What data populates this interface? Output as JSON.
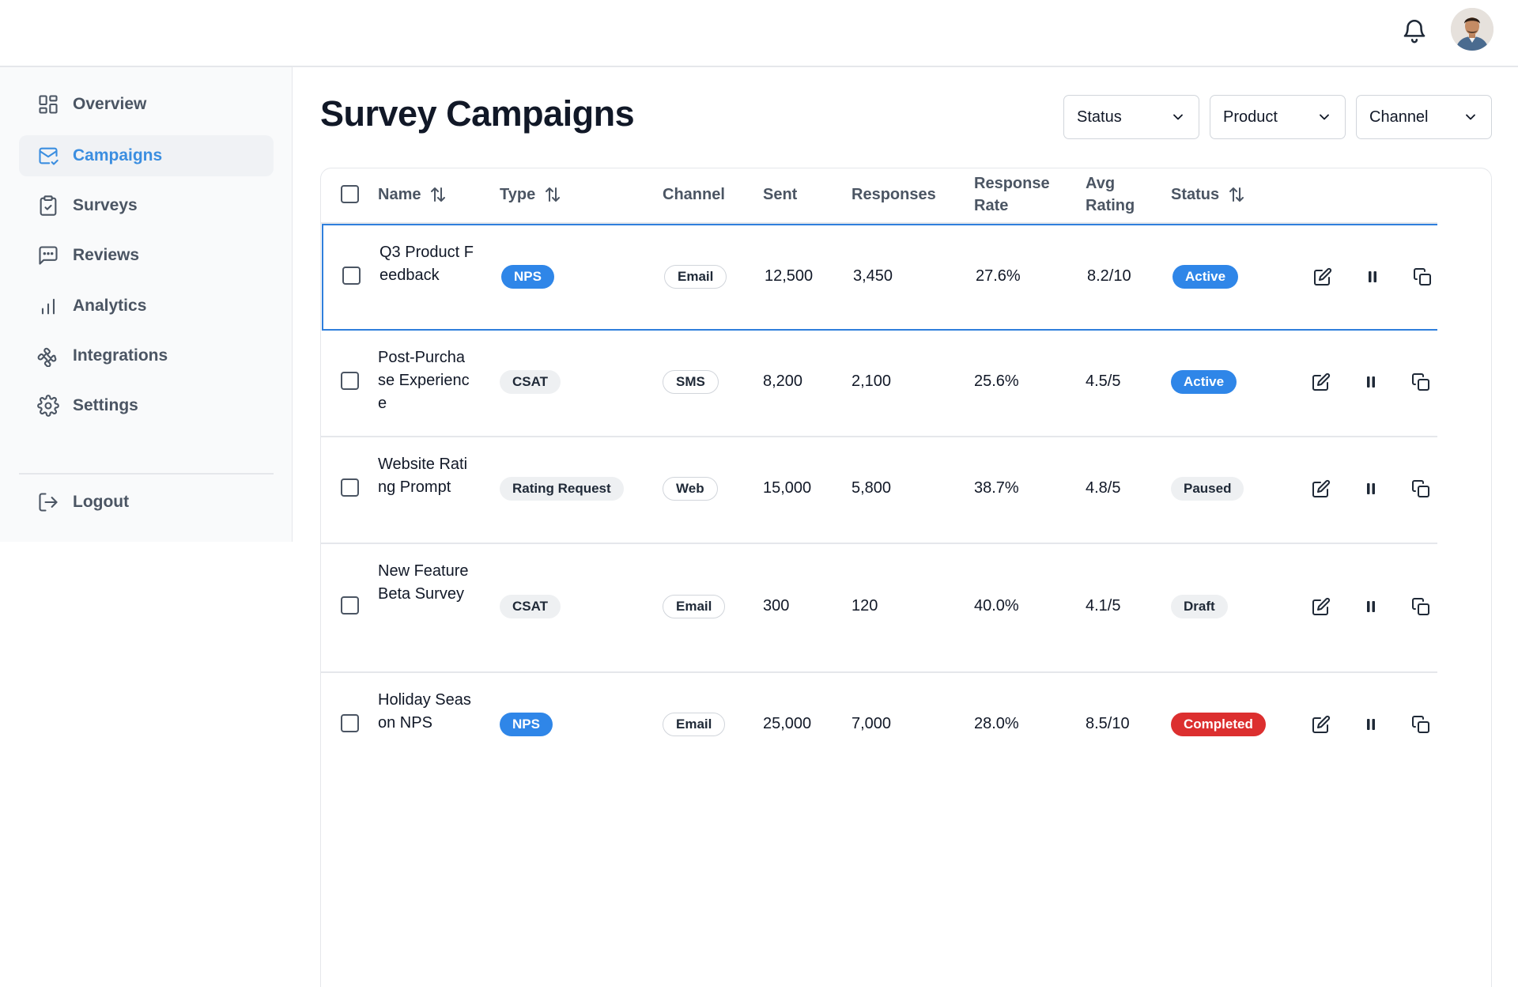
{
  "header": {
    "bell_icon": "bell-icon",
    "avatar_icon": "user-avatar"
  },
  "sidebar": {
    "items": [
      {
        "label": "Overview",
        "icon": "grid-icon",
        "active": false
      },
      {
        "label": "Campaigns",
        "icon": "mail-check-icon",
        "active": true
      },
      {
        "label": "Surveys",
        "icon": "clipboard-check-icon",
        "active": false
      },
      {
        "label": "Reviews",
        "icon": "message-dots-icon",
        "active": false
      },
      {
        "label": "Analytics",
        "icon": "bar-chart-icon",
        "active": false
      },
      {
        "label": "Integrations",
        "icon": "puzzle-icon",
        "active": false
      },
      {
        "label": "Settings",
        "icon": "gear-icon",
        "active": false
      }
    ],
    "logout_label": "Logout"
  },
  "main": {
    "title": "Survey Campaigns",
    "filters": [
      "Status",
      "Product",
      "Channel"
    ]
  },
  "table": {
    "columns": {
      "name": "Name",
      "type": "Type",
      "channel": "Channel",
      "sent": "Sent",
      "responses": "Responses",
      "response_rate_1": "Response",
      "response_rate_2": "Rate",
      "avg_rating_1": "Avg",
      "avg_rating_2": "Rating",
      "status": "Status"
    },
    "rows": [
      {
        "name": "Q3 Product Feedback",
        "type": "NPS",
        "channel": "Email",
        "sent": "12,500",
        "responses": "3,450",
        "rate": "27.6%",
        "rating": "8.2/10",
        "status": "Active"
      },
      {
        "name": "Post-Purchase Experience",
        "type": "CSAT",
        "channel": "SMS",
        "sent": "8,200",
        "responses": "2,100",
        "rate": "25.6%",
        "rating": "4.5/5",
        "status": "Active"
      },
      {
        "name": "Website Rating Prompt",
        "type": "Rating Request",
        "channel": "Web",
        "sent": "15,000",
        "responses": "5,800",
        "rate": "38.7%",
        "rating": "4.8/5",
        "status": "Paused"
      },
      {
        "name": "New Feature Beta Survey",
        "type": "CSAT",
        "channel": "Email",
        "sent": "300",
        "responses": "120",
        "rate": "40.0%",
        "rating": "4.1/5",
        "status": "Draft"
      },
      {
        "name": "Holiday Season NPS",
        "type": "NPS",
        "channel": "Email",
        "sent": "25,000",
        "responses": "7,000",
        "rate": "28.0%",
        "rating": "8.5/10",
        "status": "Completed"
      }
    ]
  },
  "colors": {
    "accent": "#2f86e8",
    "danger": "#dc2f2f",
    "muted_badge": "#eef0f2"
  }
}
